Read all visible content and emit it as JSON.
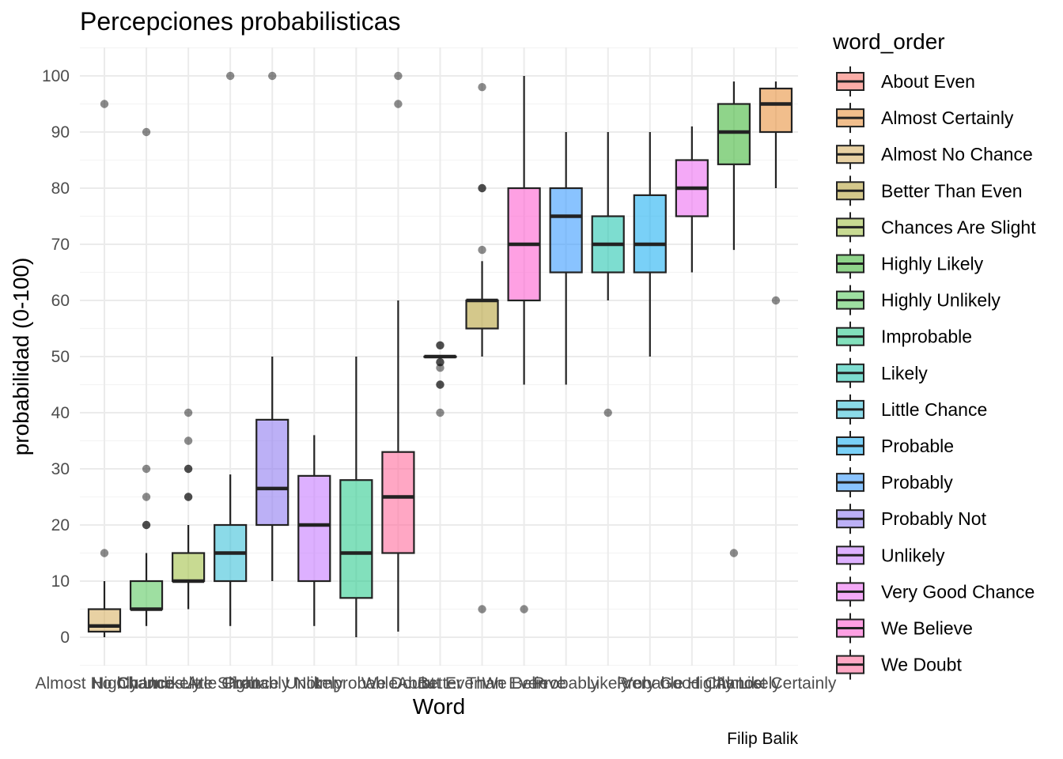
{
  "chart_data": {
    "type": "boxplot",
    "title": "Percepciones probabilisticas",
    "xlabel": "Word",
    "ylabel": "probabilidad (0-100)",
    "caption": "Filip Balik",
    "ylim": [
      -5,
      105
    ],
    "yticks": [
      0,
      10,
      20,
      30,
      40,
      50,
      60,
      70,
      80,
      90,
      100
    ],
    "grid": true,
    "legend": {
      "title": "word_order",
      "position": "right"
    },
    "categories": [
      "Almost No Chance",
      "Highly Unlikely",
      "Chances Are Slight",
      "Little Chance",
      "Probably Not",
      "Unlikely",
      "Improbable",
      "We Doubt",
      "About Even",
      "Better Than Even",
      "We Believe",
      "Probably",
      "Likely",
      "Probable",
      "Very Good Chance",
      "Highly Likely",
      "Almost Certainly"
    ],
    "boxes": [
      {
        "word": "Almost No Chance",
        "lower": 0,
        "q1": 1,
        "median": 2,
        "q3": 5,
        "upper": 10,
        "outliers": [
          15,
          95
        ],
        "color": "#d8b365"
      },
      {
        "word": "Highly Unlikely",
        "lower": 2,
        "q1": 5,
        "median": 5,
        "q3": 10,
        "upper": 15,
        "outliers": [
          20,
          20,
          25,
          30,
          90
        ],
        "color": "#5ec962"
      },
      {
        "word": "Chances Are Slight",
        "lower": 5,
        "q1": 10,
        "median": 10,
        "q3": 15,
        "upper": 20,
        "outliers": [
          25,
          25,
          30,
          30,
          35,
          40
        ],
        "color": "#a3c14a"
      },
      {
        "word": "Little Chance",
        "lower": 2,
        "q1": 10,
        "median": 15,
        "q3": 20,
        "upper": 29,
        "outliers": [
          100
        ],
        "color": "#3ec1d8"
      },
      {
        "word": "Probably Not",
        "lower": 10,
        "q1": 20,
        "median": 26.5,
        "q3": 38.75,
        "upper": 50,
        "outliers": [
          100
        ],
        "color": "#8f7cf0"
      },
      {
        "word": "Unlikely",
        "lower": 2,
        "q1": 10,
        "median": 20,
        "q3": 28.75,
        "upper": 36,
        "outliers": [],
        "color": "#c77cff"
      },
      {
        "word": "Improbable",
        "lower": 0,
        "q1": 7,
        "median": 15,
        "q3": 28,
        "upper": 50,
        "outliers": [],
        "color": "#2ecc8f"
      },
      {
        "word": "We Doubt",
        "lower": 1,
        "q1": 15,
        "median": 25,
        "q3": 33,
        "upper": 60,
        "outliers": [
          95,
          100
        ],
        "color": "#ff6d9d"
      },
      {
        "word": "About Even",
        "lower": 50,
        "q1": 50,
        "median": 50,
        "q3": 50,
        "upper": 50,
        "outliers": [
          40,
          45,
          45,
          48,
          49,
          49,
          52,
          52
        ],
        "color": "#f8766d"
      },
      {
        "word": "Better Than Even",
        "lower": 50,
        "q1": 55,
        "median": 60,
        "q3": 60,
        "upper": 67,
        "outliers": [
          5,
          69,
          80,
          80,
          98
        ],
        "color": "#b8a43d"
      },
      {
        "word": "We Believe",
        "lower": 45,
        "q1": 60,
        "median": 70,
        "q3": 80,
        "upper": 100,
        "outliers": [
          5
        ],
        "color": "#fd61d1"
      },
      {
        "word": "Probably",
        "lower": 45,
        "q1": 65,
        "median": 75,
        "q3": 80,
        "upper": 90,
        "outliers": [],
        "color": "#3b9bff"
      },
      {
        "word": "Likely",
        "lower": 60,
        "q1": 65,
        "median": 70,
        "q3": 75,
        "upper": 90,
        "outliers": [
          40
        ],
        "color": "#26c6b0"
      },
      {
        "word": "Probable",
        "lower": 50,
        "q1": 65,
        "median": 70,
        "q3": 78.75,
        "upper": 90,
        "outliers": [],
        "color": "#1fb1f2"
      },
      {
        "word": "Very Good Chance",
        "lower": 65,
        "q1": 75,
        "median": 80,
        "q3": 85,
        "upper": 91,
        "outliers": [],
        "color": "#ed6ff2"
      },
      {
        "word": "Highly Likely",
        "lower": 69,
        "q1": 84.25,
        "median": 90,
        "q3": 95,
        "upper": 99,
        "outliers": [
          15
        ],
        "color": "#45b83c"
      },
      {
        "word": "Almost Certainly",
        "lower": 80,
        "q1": 90,
        "median": 95,
        "q3": 97.75,
        "upper": 99,
        "outliers": [
          60
        ],
        "color": "#e8923f"
      }
    ],
    "legend_entries": [
      {
        "label": "About Even",
        "color": "#f8766d"
      },
      {
        "label": "Almost Certainly",
        "color": "#e8923f"
      },
      {
        "label": "Almost No Chance",
        "color": "#d8b365"
      },
      {
        "label": "Better Than Even",
        "color": "#b8a43d"
      },
      {
        "label": "Chances Are Slight",
        "color": "#a3c14a"
      },
      {
        "label": "Highly Likely",
        "color": "#45b83c"
      },
      {
        "label": "Highly Unlikely",
        "color": "#5ec962"
      },
      {
        "label": "Improbable",
        "color": "#2ecc8f"
      },
      {
        "label": "Likely",
        "color": "#26c6b0"
      },
      {
        "label": "Little Chance",
        "color": "#3ec1d8"
      },
      {
        "label": "Probable",
        "color": "#1fb1f2"
      },
      {
        "label": "Probably",
        "color": "#3b9bff"
      },
      {
        "label": "Probably Not",
        "color": "#8f7cf0"
      },
      {
        "label": "Unlikely",
        "color": "#c77cff"
      },
      {
        "label": "Very Good Chance",
        "color": "#ed6ff2"
      },
      {
        "label": "We Believe",
        "color": "#fd61d1"
      },
      {
        "label": "We Doubt",
        "color": "#ff6d9d"
      }
    ]
  }
}
